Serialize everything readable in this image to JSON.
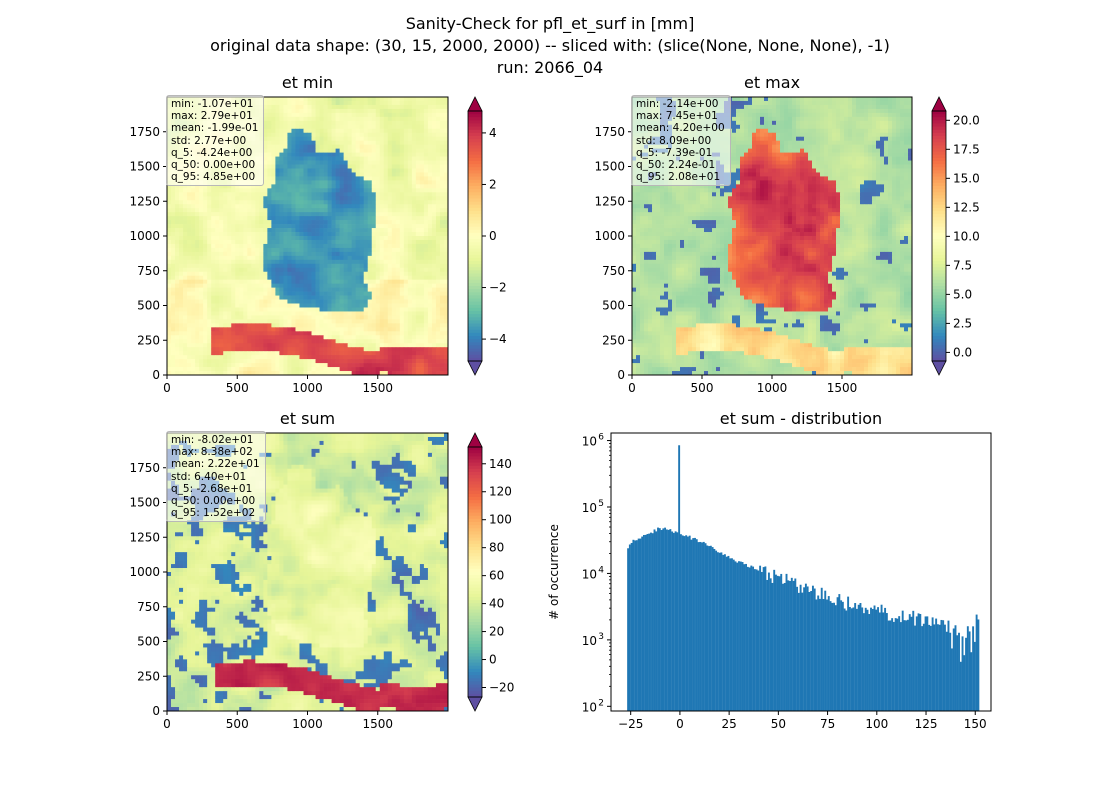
{
  "figure": {
    "title_line1": "Sanity-Check for pfl_et_surf in [mm]",
    "title_line2": "original data shape: (30, 15, 2000, 2000) -- sliced with: (slice(None, None, None), -1)",
    "title_line3": "run: 2066_04"
  },
  "colors": {
    "spectral": [
      "#9e0142",
      "#d53e4f",
      "#f46d43",
      "#fdae61",
      "#fee08b",
      "#ffffbf",
      "#e6f598",
      "#abdda4",
      "#66c2a5",
      "#3288bd",
      "#5e4fa2"
    ],
    "hist_bar": "#1f77b4"
  },
  "chart_data": [
    {
      "type": "heatmap",
      "title": "et min",
      "xlim": [
        0,
        2000
      ],
      "ylim": [
        0,
        2000
      ],
      "x_ticks": [
        "0",
        "500",
        "1000",
        "1500"
      ],
      "y_ticks": [
        "0",
        "250",
        "500",
        "750",
        "1000",
        "1250",
        "1500",
        "1750"
      ],
      "colorbar": {
        "vmin": -4.85,
        "vmax": 4.85,
        "extend": "both",
        "ticks": [
          -4,
          -2,
          0,
          2,
          4
        ],
        "tick_labels": [
          "−4",
          "−2",
          "0",
          "2",
          "4"
        ]
      },
      "stats": [
        "min: -1.07e+01",
        "max: 2.79e+01",
        "mean: -1.99e-01",
        "std: 2.77e+00",
        "q_5: -4.24e+00",
        "q_50: 0.00e+00",
        "q_95: 4.85e+00"
      ]
    },
    {
      "type": "heatmap",
      "title": "et max",
      "xlim": [
        0,
        2000
      ],
      "ylim": [
        0,
        2000
      ],
      "x_ticks": [
        "0",
        "500",
        "1000",
        "1500"
      ],
      "y_ticks": [
        "0",
        "250",
        "500",
        "750",
        "1000",
        "1250",
        "1500",
        "1750"
      ],
      "colorbar": {
        "vmin": -0.74,
        "vmax": 20.8,
        "extend": "both",
        "ticks": [
          0,
          2.5,
          5,
          7.5,
          10,
          12.5,
          15,
          17.5,
          20
        ],
        "tick_labels": [
          "0.0",
          "2.5",
          "5.0",
          "7.5",
          "10.0",
          "12.5",
          "15.0",
          "17.5",
          "20.0"
        ]
      },
      "stats": [
        "min: -2.14e+00",
        "max: 7.45e+01",
        "mean: 4.20e+00",
        "std: 8.09e+00",
        "q_5: -7.39e-01",
        "q_50: 2.24e-01",
        "q_95: 2.08e+01"
      ]
    },
    {
      "type": "heatmap",
      "title": "et sum",
      "xlim": [
        0,
        2000
      ],
      "ylim": [
        0,
        2000
      ],
      "x_ticks": [
        "0",
        "500",
        "1000",
        "1500"
      ],
      "y_ticks": [
        "0",
        "250",
        "500",
        "750",
        "1000",
        "1250",
        "1500",
        "1750"
      ],
      "colorbar": {
        "vmin": -26.8,
        "vmax": 152,
        "extend": "both",
        "ticks": [
          -20,
          0,
          20,
          40,
          60,
          80,
          100,
          120,
          140
        ],
        "tick_labels": [
          "−20",
          "0",
          "20",
          "40",
          "60",
          "80",
          "100",
          "120",
          "140"
        ]
      },
      "stats": [
        "min: -8.02e+01",
        "max: 8.38e+02",
        "mean: 2.22e+01",
        "std: 6.40e+01",
        "q_5: -2.68e+01",
        "q_50: 0.00e+00",
        "q_95: 1.52e+02"
      ]
    },
    {
      "type": "bar",
      "title": "et sum - distribution",
      "ylabel": "# of occurrence",
      "yscale": "log",
      "xlim": [
        -35,
        158
      ],
      "ylim": [
        85,
        1300000
      ],
      "x_ticks": [
        -25,
        0,
        25,
        50,
        75,
        100,
        125,
        150
      ],
      "x_tick_labels": [
        "−25",
        "0",
        "25",
        "50",
        "75",
        "100",
        "125",
        "150"
      ],
      "y_ticks": [
        100,
        1000,
        10000,
        100000,
        1000000
      ],
      "y_tick_labels": [
        "10",
        "10",
        "10",
        "10",
        "10"
      ],
      "y_tick_exponents": [
        "2",
        "3",
        "4",
        "5",
        "6"
      ],
      "bin_range": [
        -26.8,
        152
      ],
      "spike": {
        "x": -0.4,
        "count": 850000
      },
      "points": [
        [
          -26.8,
          24000
        ],
        [
          -25,
          30000
        ],
        [
          -22,
          33000
        ],
        [
          -18,
          38000
        ],
        [
          -14,
          42000
        ],
        [
          -10,
          48000
        ],
        [
          -6,
          46000
        ],
        [
          -2,
          42000
        ],
        [
          0,
          40000
        ],
        [
          5,
          35000
        ],
        [
          10,
          30000
        ],
        [
          15,
          26000
        ],
        [
          20,
          21000
        ],
        [
          25,
          17000
        ],
        [
          30,
          15000
        ],
        [
          35,
          13000
        ],
        [
          40,
          11000
        ],
        [
          50,
          8500
        ],
        [
          60,
          6500
        ],
        [
          70,
          5000
        ],
        [
          80,
          4000
        ],
        [
          90,
          3200
        ],
        [
          100,
          2700
        ],
        [
          110,
          2300
        ],
        [
          120,
          2100
        ],
        [
          130,
          1800
        ],
        [
          135,
          1600
        ],
        [
          140,
          1300
        ],
        [
          145,
          1200
        ],
        [
          150,
          1900
        ]
      ]
    }
  ]
}
